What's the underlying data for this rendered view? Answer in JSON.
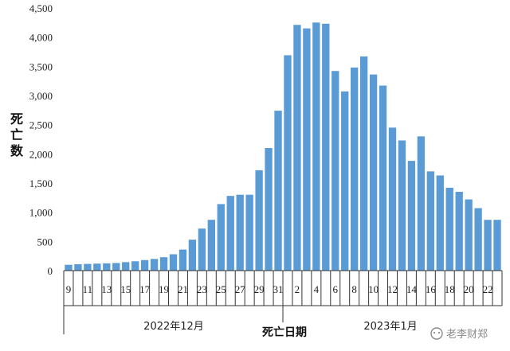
{
  "chart_data": {
    "type": "bar",
    "ylabel": "死亡数",
    "xlabel": "死亡日期",
    "ylim": [
      0,
      4500
    ],
    "yticks": [
      0,
      500,
      1000,
      1500,
      2000,
      2500,
      3000,
      3500,
      4000,
      4500
    ],
    "ytick_labels": [
      "0",
      "500",
      "1,000",
      "1,500",
      "2,000",
      "2,500",
      "3,000",
      "3,500",
      "4,000",
      "4,500"
    ],
    "bar_color": "#5b9bd5",
    "groups": [
      {
        "label": "2022年12月",
        "day_start": 9,
        "day_end": 31
      },
      {
        "label": "2023年1月",
        "day_start": 1,
        "day_end": 23
      }
    ],
    "categories": [
      "9",
      "10",
      "11",
      "12",
      "13",
      "14",
      "15",
      "16",
      "17",
      "18",
      "19",
      "20",
      "21",
      "22",
      "23",
      "24",
      "25",
      "26",
      "27",
      "28",
      "29",
      "30",
      "31",
      "1",
      "2",
      "3",
      "4",
      "5",
      "6",
      "7",
      "8",
      "9",
      "10",
      "11",
      "12",
      "13",
      "14",
      "15",
      "16",
      "17",
      "18",
      "19",
      "20",
      "21",
      "22",
      "23"
    ],
    "tick_labels": [
      "9",
      "",
      "11",
      "",
      "13",
      "",
      "15",
      "",
      "17",
      "",
      "19",
      "",
      "21",
      "",
      "23",
      "",
      "25",
      "",
      "27",
      "",
      "29",
      "",
      "31",
      "",
      "2",
      "",
      "4",
      "",
      "6",
      "",
      "8",
      "",
      "10",
      "",
      "12",
      "",
      "14",
      "",
      "16",
      "",
      "18",
      "",
      "20",
      "",
      "22",
      ""
    ],
    "values": [
      100,
      110,
      115,
      120,
      125,
      130,
      145,
      160,
      180,
      200,
      230,
      280,
      360,
      530,
      720,
      870,
      1140,
      1280,
      1300,
      1300,
      1720,
      2100,
      2740,
      3690,
      4210,
      4150,
      4250,
      4230,
      3420,
      3070,
      3480,
      3670,
      3360,
      3170,
      2450,
      2230,
      1880,
      2300,
      1700,
      1630,
      1420,
      1350,
      1220,
      1070,
      870,
      870
    ]
  },
  "watermark": {
    "text": "老李财郑",
    "icon": "chat-bubble-icon"
  }
}
